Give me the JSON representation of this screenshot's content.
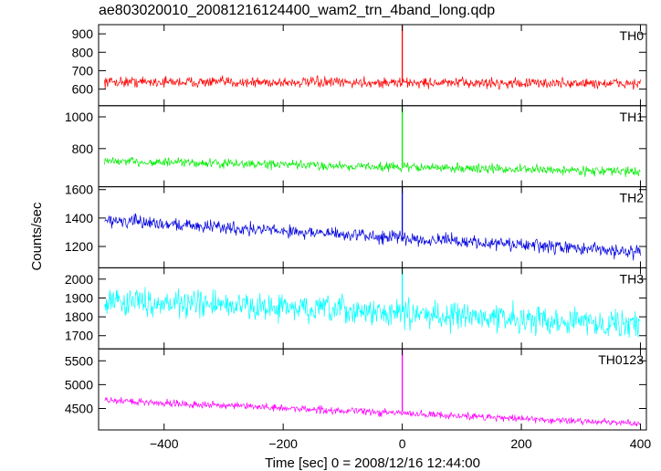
{
  "chart_data": {
    "type": "line",
    "title": "ae803020010_20081216124400_wam2_trn_4band_long.qdp",
    "xlabel": "Time [sec] 0 = 2008/12/16 12:44:00",
    "ylabel": "Counts/sec",
    "xlim": [
      -510,
      410
    ],
    "xticks": [
      -400,
      -200,
      0,
      200,
      400
    ],
    "xtick_labels": [
      "−400",
      "−200",
      "0",
      "200",
      "400"
    ],
    "grid": false,
    "panels": [
      {
        "name": "TH0",
        "color": "#ff0000",
        "ylim": [
          510,
          950
        ],
        "yticks": [
          600,
          700,
          800,
          900
        ],
        "ytick_labels": [
          "600",
          "700",
          "800",
          "900"
        ],
        "trend": [
          {
            "x": -500,
            "y": 640
          },
          {
            "x": 400,
            "y": 630
          }
        ],
        "noise_amplitude": 28,
        "spike": {
          "x": 0,
          "y": 950
        }
      },
      {
        "name": "TH1",
        "color": "#00ee00",
        "ylim": [
          560,
          1070
        ],
        "yticks": [
          800,
          1000
        ],
        "ytick_labels": [
          "800",
          "1000"
        ],
        "trend": [
          {
            "x": -500,
            "y": 720
          },
          {
            "x": 400,
            "y": 655
          }
        ],
        "noise_amplitude": 28,
        "spike": {
          "x": 0,
          "y": 1070
        }
      },
      {
        "name": "TH2",
        "color": "#0000dd",
        "ylim": [
          1050,
          1620
        ],
        "yticks": [
          1200,
          1400,
          1600
        ],
        "ytick_labels": [
          "1200",
          "1400",
          "1600"
        ],
        "trend": [
          {
            "x": -500,
            "y": 1385
          },
          {
            "x": 400,
            "y": 1160
          }
        ],
        "noise_amplitude": 45,
        "spike": {
          "x": 0,
          "y": 1620
        }
      },
      {
        "name": "TH3",
        "color": "#00ffff",
        "ylim": [
          1630,
          2060
        ],
        "yticks": [
          1700,
          1800,
          1900,
          2000
        ],
        "ytick_labels": [
          "1700",
          "1800",
          "1900",
          "2000"
        ],
        "trend": [
          {
            "x": -500,
            "y": 1890
          },
          {
            "x": 400,
            "y": 1760
          }
        ],
        "noise_amplitude": 70,
        "spike": {
          "x": 0,
          "y": 2060
        }
      },
      {
        "name": "TH0123",
        "color": "#ff00ff",
        "ylim": [
          4050,
          5750
        ],
        "yticks": [
          4500,
          5000,
          5500
        ],
        "ytick_labels": [
          "4500",
          "5000",
          "5500"
        ],
        "trend": [
          {
            "x": -500,
            "y": 4670
          },
          {
            "x": 400,
            "y": 4180
          }
        ],
        "noise_amplitude": 75,
        "spike": {
          "x": 0,
          "y": 5750
        }
      }
    ]
  }
}
